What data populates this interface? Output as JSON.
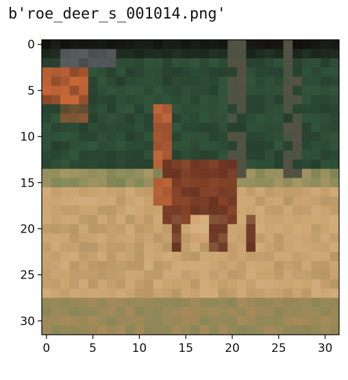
{
  "figure": {
    "title": "b'roe_deer_s_001014.png'"
  },
  "chart_data": {
    "type": "heatmap",
    "title": "b'roe_deer_s_001014.png'",
    "xlabel": "",
    "ylabel": "",
    "xlim": [
      -0.5,
      31.5
    ],
    "ylim": [
      31.5,
      -0.5
    ],
    "x_ticks": [
      0,
      5,
      10,
      15,
      20,
      25,
      30
    ],
    "y_ticks": [
      0,
      5,
      10,
      15,
      20,
      25,
      30
    ],
    "x_tick_labels": [
      "0",
      "5",
      "10",
      "15",
      "20",
      "25",
      "30"
    ],
    "y_tick_labels": [
      "0",
      "5",
      "10",
      "15",
      "20",
      "25",
      "30"
    ],
    "grid": false,
    "image_size": [
      32,
      32
    ],
    "colors": {
      "dark_top": "#13110e",
      "grey_patch": "#5e6468",
      "orange_leaf": "#c86838",
      "dark_green": "#27402e",
      "mid_green": "#345a3e",
      "tree_trunk": "#5a5044",
      "ground_tan": "#c9a370",
      "ground_light": "#d8b584",
      "ground_dark": "#a88a5a",
      "grass_green": "#7e8656",
      "deer_brown": "#6a3422",
      "deer_orange": "#c0683a"
    }
  }
}
